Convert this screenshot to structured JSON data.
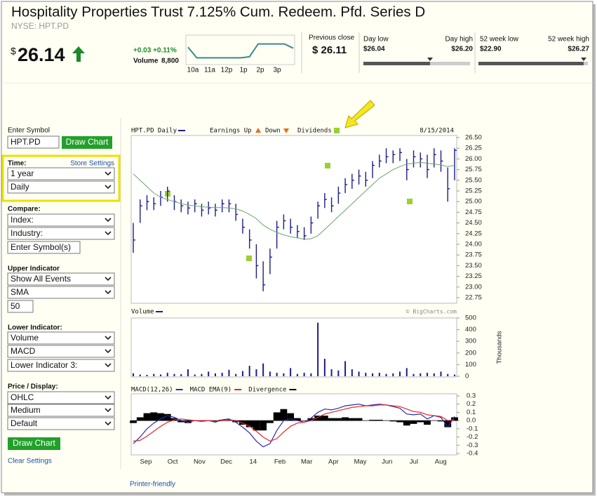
{
  "header": {
    "title": "Hospitality Properties Trust 7.125% Cum. Redeem. Pfd. Series D",
    "exchange": "NYSE: HPT.PD",
    "currency": "$",
    "price": 26.14,
    "change": "+0.03 +0.11%",
    "volume_label": "Volume",
    "volume": "8,800",
    "previous_close_label": "Previous close",
    "previous_close": "$ 26.11",
    "day_low_label": "Day low",
    "day_low": {
      "value": 26.04,
      "label": "$26.04"
    },
    "day_high_label": "Day high",
    "day_high": {
      "value": 26.2,
      "label": "$26.20"
    },
    "week52_low_label": "52 week low",
    "week52_low": {
      "value": 22.9,
      "label": "$22.90"
    },
    "week52_high_label": "52 week high",
    "week52_high": {
      "value": 26.27,
      "label": "$26.27"
    },
    "intraday": {
      "values": [
        26.15,
        26.05,
        26.05,
        26.05,
        26.05,
        26.05,
        26.05,
        26.06,
        26.18,
        26.18,
        26.18,
        26.18,
        26.14
      ],
      "ylim": [
        26.0,
        26.25
      ],
      "time_labels": [
        "10a",
        "11a",
        "12p",
        "1p",
        "2p",
        "3p"
      ]
    }
  },
  "sidebar": {
    "symbol_label": "Enter Symbol",
    "symbol_input": "HPT.PD",
    "draw_button": "Draw Chart",
    "time": {
      "label": "Time:",
      "store": "Store Settings",
      "period": "1 year",
      "interval": "Daily"
    },
    "compare": {
      "label": "Compare:",
      "index": "Index:",
      "industry": "Industry:",
      "symbols": "Enter Symbol(s)"
    },
    "upper": {
      "label": "Upper Indicator",
      "events": "Show All Events",
      "indicator": "SMA",
      "period": "50"
    },
    "lower": {
      "label": "Lower Indicator:",
      "first": "Volume",
      "second": "MACD",
      "third": "Lower Indicator 3:"
    },
    "display": {
      "label": "Price / Display:",
      "style": "OHLC",
      "size": "Medium",
      "scheme": "Default"
    },
    "draw_button_bottom": "Draw Chart",
    "clear": "Clear Settings"
  },
  "chart": {
    "symbol_label": "HPT.PD Daily",
    "earnings_up": "Earnings Up",
    "earnings_down": "Down",
    "dividends": "Dividends",
    "date": "8/15/2014",
    "copyright": "© BigCharts.com",
    "months": [
      "Sep",
      "Oct",
      "Nov",
      "Dec",
      "14",
      "Feb",
      "Mar",
      "Apr",
      "May",
      "Jun",
      "Jul",
      "Aug"
    ],
    "price": {
      "type": "ohlc",
      "color": "#1c1c8a",
      "sma_color": "#6aa56a",
      "high": [
        24.5,
        25.05,
        25.15,
        25.1,
        25.25,
        25.35,
        25.15,
        25.05,
        25.0,
        25.05,
        24.95,
        25.0,
        24.95,
        25.05,
        25.05,
        24.95,
        24.6,
        24.35,
        24.0,
        23.6,
        23.9,
        24.55,
        24.7,
        24.6,
        24.45,
        24.4,
        24.65,
        25.0,
        25.2,
        25.1,
        25.35,
        25.55,
        25.65,
        25.75,
        25.7,
        25.95,
        26.1,
        26.25,
        26.2,
        26.25,
        26.0,
        26.2,
        26.15,
        26.1,
        26.25,
        26.2,
        25.8,
        26.25
      ],
      "low": [
        23.8,
        24.5,
        24.8,
        24.8,
        24.9,
        25.0,
        24.8,
        24.75,
        24.7,
        24.75,
        24.65,
        24.7,
        24.65,
        24.75,
        24.75,
        24.55,
        24.25,
        23.9,
        23.2,
        22.9,
        23.3,
        23.9,
        24.35,
        24.25,
        24.15,
        24.1,
        24.25,
        24.6,
        24.85,
        24.75,
        24.95,
        25.2,
        25.3,
        25.4,
        25.35,
        25.55,
        25.8,
        25.9,
        25.9,
        25.95,
        25.5,
        25.8,
        25.8,
        25.55,
        25.8,
        25.7,
        25.0,
        25.5
      ],
      "close": [
        24.1,
        24.9,
        25.0,
        24.95,
        25.1,
        25.25,
        25.0,
        24.9,
        24.85,
        24.95,
        24.8,
        24.85,
        24.8,
        24.95,
        24.95,
        24.7,
        24.4,
        24.1,
        23.5,
        23.05,
        23.7,
        24.4,
        24.55,
        24.4,
        24.3,
        24.2,
        24.5,
        24.9,
        25.05,
        24.9,
        25.2,
        25.4,
        25.5,
        25.6,
        25.5,
        25.85,
        25.95,
        26.05,
        26.1,
        26.15,
        25.75,
        26.05,
        26.0,
        25.75,
        26.1,
        25.95,
        25.3,
        26.2
      ],
      "sma": [
        25.65,
        25.5,
        25.35,
        25.2,
        25.1,
        25.05,
        25.0,
        24.95,
        24.92,
        24.9,
        24.88,
        24.87,
        24.86,
        24.86,
        24.85,
        24.83,
        24.78,
        24.7,
        24.6,
        24.45,
        24.35,
        24.28,
        24.22,
        24.18,
        24.15,
        24.12,
        24.13,
        24.2,
        24.35,
        24.5,
        24.65,
        24.8,
        24.95,
        25.1,
        25.25,
        25.4,
        25.55,
        25.65,
        25.75,
        25.82,
        25.88,
        25.9,
        25.92,
        25.9,
        25.88,
        25.86,
        25.82,
        25.85
      ],
      "ylim": [
        22.75,
        26.5
      ],
      "yticks": [
        {
          "value": 26.5,
          "label": "26.50"
        },
        26.25,
        {
          "value": 26,
          "label": "26.00"
        },
        25.75,
        {
          "value": 25.5,
          "label": "25.50"
        },
        25.25,
        {
          "value": 25,
          "label": "25.00"
        },
        24.75,
        {
          "value": 24.5,
          "label": "24.50"
        },
        24.25,
        {
          "value": 24,
          "label": "24.00"
        },
        23.75,
        {
          "value": 23.5,
          "label": "23.50"
        },
        23.25,
        {
          "value": 23,
          "label": "23.00"
        },
        22.75
      ]
    },
    "volume": {
      "type": "bar",
      "label": "Volume",
      "unit_label": "Thousands",
      "color": "#1c1c8a",
      "values": [
        25,
        15,
        12,
        20,
        15,
        30,
        20,
        18,
        60,
        15,
        20,
        40,
        25,
        30,
        55,
        20,
        45,
        90,
        60,
        110,
        40,
        30,
        25,
        70,
        20,
        30,
        25,
        460,
        150,
        60,
        50,
        130,
        60,
        40,
        30,
        25,
        30,
        20,
        25,
        40,
        70,
        20,
        25,
        30,
        25,
        40,
        20,
        15
      ],
      "ylim": [
        0,
        500
      ],
      "yticks": [
        500,
        400,
        300,
        200,
        100,
        0
      ]
    },
    "macd": {
      "type": "line",
      "series": [
        {
          "name": "MACD(12,26)",
          "color": "#2a2ab0",
          "values": [
            -0.28,
            -0.2,
            -0.1,
            -0.03,
            0.02,
            0.06,
            0.04,
            0.0,
            -0.02,
            0.0,
            -0.01,
            0.0,
            -0.02,
            0.01,
            0.02,
            -0.02,
            -0.08,
            -0.15,
            -0.25,
            -0.32,
            -0.28,
            -0.12,
            0.0,
            0.02,
            0.0,
            -0.02,
            0.03,
            0.1,
            0.14,
            0.13,
            0.15,
            0.18,
            0.19,
            0.2,
            0.18,
            0.19,
            0.2,
            0.19,
            0.17,
            0.15,
            0.08,
            0.07,
            0.08,
            0.02,
            0.06,
            0.04,
            -0.08,
            0.05
          ]
        },
        {
          "name": "MACD EMA(9)",
          "color": "#e02828",
          "values": [
            -0.25,
            -0.24,
            -0.19,
            -0.13,
            -0.07,
            -0.02,
            0.01,
            0.02,
            0.01,
            0.0,
            0.0,
            0.0,
            -0.01,
            0.0,
            0.01,
            0.0,
            -0.03,
            -0.07,
            -0.13,
            -0.2,
            -0.25,
            -0.22,
            -0.14,
            -0.07,
            -0.03,
            -0.02,
            0.0,
            0.04,
            0.08,
            0.1,
            0.12,
            0.14,
            0.16,
            0.17,
            0.18,
            0.18,
            0.19,
            0.19,
            0.18,
            0.17,
            0.14,
            0.11,
            0.1,
            0.07,
            0.06,
            0.05,
            0.0,
            0.01
          ]
        },
        {
          "name": "Divergence",
          "color": "#000000",
          "values": [
            -0.03,
            0.04,
            0.09,
            0.1,
            0.09,
            0.08,
            0.03,
            -0.02,
            -0.03,
            0.0,
            -0.01,
            0.0,
            -0.01,
            0.01,
            0.01,
            -0.02,
            -0.05,
            -0.08,
            -0.12,
            -0.12,
            -0.03,
            0.1,
            0.14,
            0.09,
            0.03,
            0.0,
            0.03,
            0.06,
            0.06,
            0.03,
            0.03,
            0.04,
            0.03,
            0.03,
            0.0,
            0.01,
            0.01,
            0.0,
            -0.01,
            -0.02,
            -0.06,
            -0.04,
            -0.02,
            -0.05,
            0.0,
            -0.01,
            -0.08,
            0.04
          ]
        }
      ],
      "ylim": [
        -0.4,
        0.3
      ],
      "yticks": [
        0.3,
        0.2,
        0.1,
        {
          "value": 0,
          "label": "0.0"
        },
        -0.1,
        -0.2,
        -0.3,
        -0.4
      ]
    }
  },
  "footer": {
    "printer": "Printer-friendly"
  }
}
